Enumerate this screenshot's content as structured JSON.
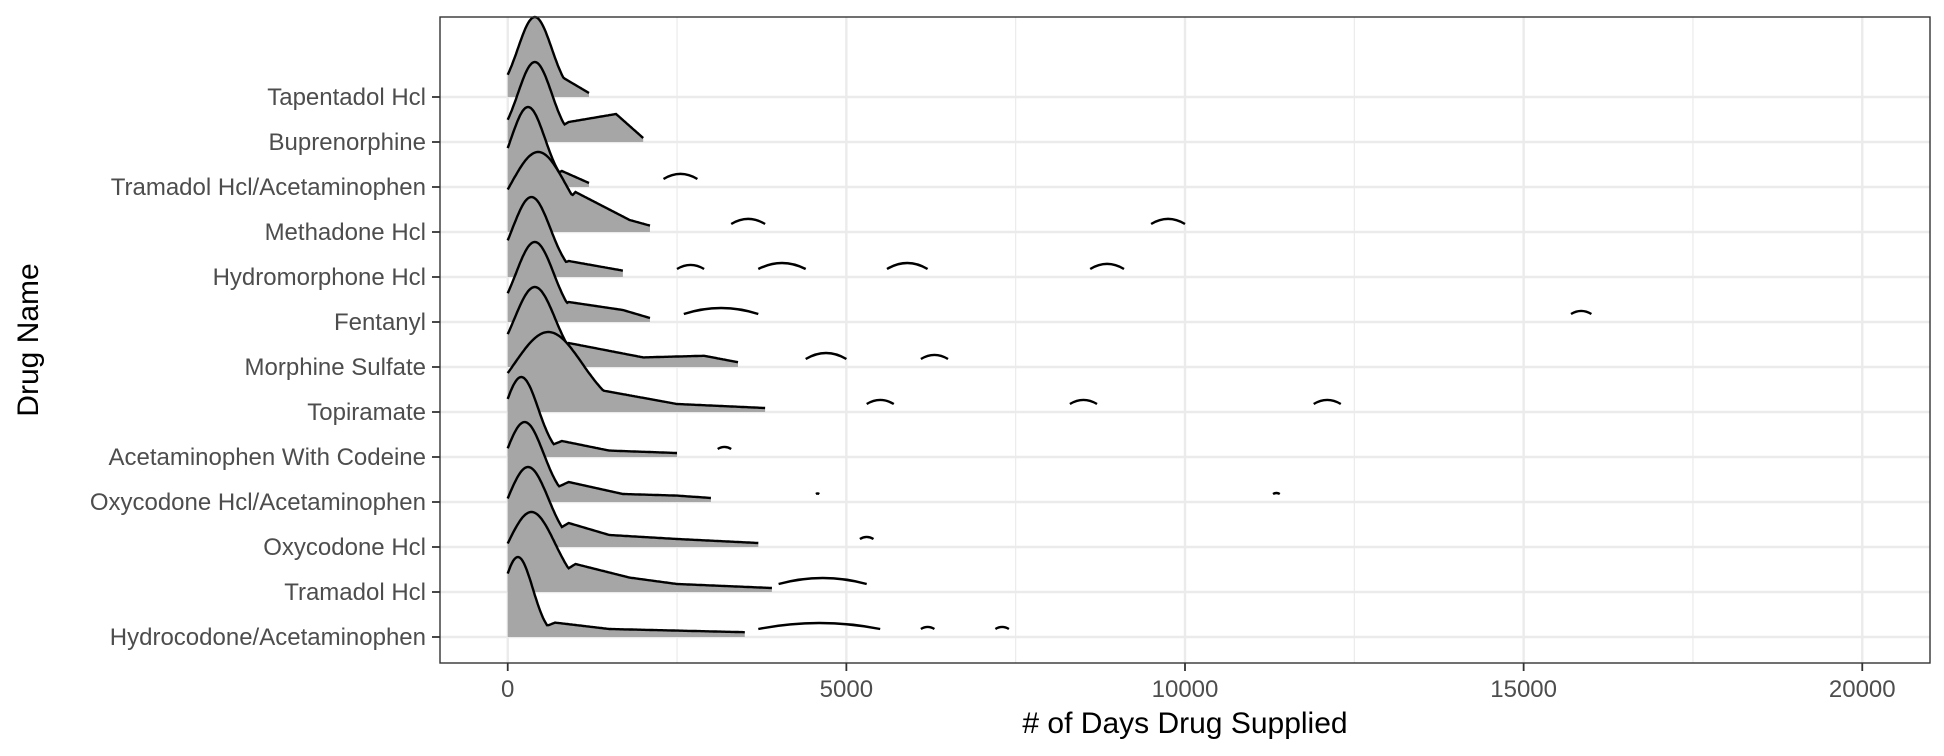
{
  "chart_data": {
    "type": "ridgeline",
    "xlabel": "# of Days Drug Supplied",
    "ylabel": "Drug Name",
    "xlim": [
      -1000,
      21000
    ],
    "x_ticks": [
      0,
      5000,
      10000,
      15000,
      20000
    ],
    "x_tick_labels": [
      "0",
      "5000",
      "10000",
      "15000",
      "20000"
    ],
    "grid": true,
    "fill_color": "#a6a6a6",
    "line_color": "#000000",
    "categories": [
      "Hydrocodone/Acetaminophen",
      "Tramadol Hcl",
      "Oxycodone Hcl",
      "Oxycodone Hcl/Acetaminophen",
      "Acetaminophen With Codeine",
      "Topiramate",
      "Morphine Sulfate",
      "Fentanyl",
      "Hydromorphone Hcl",
      "Methadone Hcl",
      "Tramadol Hcl/Acetaminophen",
      "Buprenorphine",
      "Tapentadol Hcl"
    ],
    "series": [
      {
        "name": "Hydrocodone/Acetaminophen",
        "peak": 150,
        "width": 220,
        "max_days": 3500,
        "tail_points": [
          [
            700,
            0.18
          ],
          [
            1500,
            0.1
          ],
          [
            2500,
            0.08
          ],
          [
            3500,
            0.06
          ]
        ],
        "isolated": [
          [
            3700,
            5500
          ],
          [
            6100,
            6300
          ],
          [
            7200,
            7400
          ]
        ]
      },
      {
        "name": "Tramadol Hcl",
        "peak": 350,
        "width": 350,
        "max_days": 3900,
        "tail_points": [
          [
            1000,
            0.35
          ],
          [
            1800,
            0.18
          ],
          [
            2500,
            0.1
          ],
          [
            3900,
            0.05
          ]
        ],
        "isolated": [
          [
            4000,
            5300
          ]
        ]
      },
      {
        "name": "Oxycodone Hcl",
        "peak": 300,
        "width": 300,
        "max_days": 3700,
        "tail_points": [
          [
            900,
            0.3
          ],
          [
            1500,
            0.15
          ],
          [
            2500,
            0.1
          ],
          [
            3700,
            0.05
          ]
        ],
        "isolated": [
          [
            5200,
            5400
          ]
        ]
      },
      {
        "name": "Oxycodone Hcl/Acetaminophen",
        "peak": 250,
        "width": 280,
        "max_days": 3000,
        "tail_points": [
          [
            900,
            0.25
          ],
          [
            1700,
            0.1
          ],
          [
            2500,
            0.08
          ],
          [
            3000,
            0.05
          ]
        ],
        "isolated": [
          [
            4550,
            4600
          ],
          [
            11300,
            11400
          ]
        ]
      },
      {
        "name": "Acetaminophen With Codeine",
        "peak": 200,
        "width": 250,
        "max_days": 2500,
        "tail_points": [
          [
            800,
            0.2
          ],
          [
            1500,
            0.08
          ],
          [
            2500,
            0.05
          ]
        ],
        "isolated": [
          [
            3100,
            3300
          ]
        ]
      },
      {
        "name": "Topiramate",
        "peak": 600,
        "width": 500,
        "max_days": 3800,
        "tail_points": [
          [
            1200,
            0.3
          ],
          [
            2500,
            0.1
          ],
          [
            3800,
            0.05
          ]
        ],
        "isolated": [
          [
            5300,
            5700
          ],
          [
            8300,
            8700
          ],
          [
            11900,
            12300
          ]
        ]
      },
      {
        "name": "Morphine Sulfate",
        "peak": 400,
        "width": 300,
        "max_days": 3400,
        "tail_points": [
          [
            900,
            0.3
          ],
          [
            2000,
            0.12
          ],
          [
            2900,
            0.14
          ],
          [
            3400,
            0.06
          ]
        ],
        "isolated": [
          [
            4400,
            5000
          ],
          [
            6100,
            6500
          ]
        ]
      },
      {
        "name": "Fentanyl",
        "peak": 400,
        "width": 280,
        "max_days": 2100,
        "tail_points": [
          [
            900,
            0.25
          ],
          [
            1700,
            0.15
          ],
          [
            2100,
            0.05
          ]
        ],
        "isolated": [
          [
            2600,
            3700
          ],
          [
            15700,
            16000
          ]
        ]
      },
      {
        "name": "Hydromorphone Hcl",
        "peak": 350,
        "width": 280,
        "max_days": 1700,
        "tail_points": [
          [
            900,
            0.2
          ],
          [
            1700,
            0.08
          ]
        ],
        "isolated": [
          [
            2500,
            2900
          ],
          [
            3700,
            4400
          ],
          [
            5600,
            6200
          ],
          [
            8600,
            9100
          ]
        ]
      },
      {
        "name": "Methadone Hcl",
        "peak": 450,
        "width": 400,
        "max_days": 2100,
        "tail_points": [
          [
            1000,
            0.5
          ],
          [
            1800,
            0.15
          ],
          [
            2100,
            0.08
          ]
        ],
        "isolated": [
          [
            3300,
            3800
          ],
          [
            9500,
            10000
          ]
        ]
      },
      {
        "name": "Tramadol Hcl/Acetaminophen",
        "peak": 300,
        "width": 250,
        "max_days": 1200,
        "tail_points": [
          [
            800,
            0.2
          ],
          [
            1200,
            0.05
          ]
        ],
        "isolated": [
          [
            2300,
            2800
          ]
        ]
      },
      {
        "name": "Buprenorphine",
        "peak": 400,
        "width": 250,
        "max_days": 2000,
        "tail_points": [
          [
            900,
            0.25
          ],
          [
            1600,
            0.35
          ],
          [
            2000,
            0.05
          ]
        ],
        "isolated": []
      },
      {
        "name": "Tapentadol Hcl",
        "peak": 400,
        "width": 250,
        "max_days": 1200,
        "tail_points": [
          [
            800,
            0.25
          ],
          [
            1200,
            0.05
          ]
        ],
        "isolated": []
      }
    ]
  }
}
